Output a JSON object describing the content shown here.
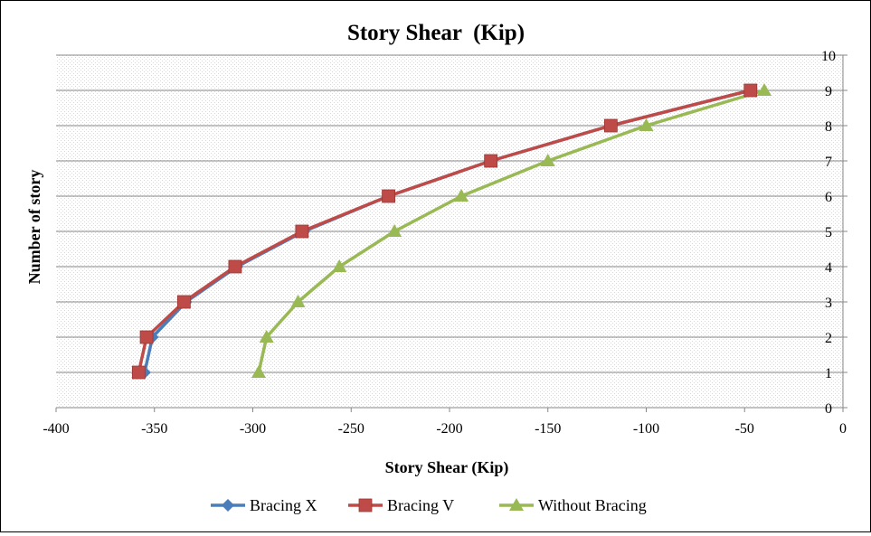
{
  "chart_data": {
    "type": "line",
    "title": "Story Shear  (Kip)",
    "xlabel": "Story Shear (Kip)",
    "ylabel": "Number of story",
    "xlim": [
      -400,
      0
    ],
    "ylim": [
      0,
      10
    ],
    "x_ticks": [
      -400,
      -350,
      -300,
      -250,
      -200,
      -150,
      -100,
      -50,
      0
    ],
    "y_ticks": [
      0,
      1,
      2,
      3,
      4,
      5,
      6,
      7,
      8,
      9,
      10
    ],
    "y_axis_position": "right",
    "grid": true,
    "legend_position": "bottom",
    "series": [
      {
        "name": "Bracing X",
        "color": "#4A7EBB",
        "marker": "diamond",
        "points": [
          [
            -355,
            1
          ],
          [
            -351,
            2
          ],
          [
            -334,
            3
          ],
          [
            -308,
            4
          ],
          [
            -274,
            5
          ],
          [
            -231,
            6
          ],
          [
            -179,
            7
          ],
          [
            -118,
            8
          ],
          [
            -47,
            9
          ]
        ]
      },
      {
        "name": "Bracing V",
        "color": "#BE4B48",
        "marker": "square",
        "points": [
          [
            -358,
            1
          ],
          [
            -354,
            2
          ],
          [
            -335,
            3
          ],
          [
            -309,
            4
          ],
          [
            -275,
            5
          ],
          [
            -231,
            6
          ],
          [
            -179,
            7
          ],
          [
            -118,
            8
          ],
          [
            -47,
            9
          ]
        ]
      },
      {
        "name": "Without Bracing",
        "color": "#98B954",
        "marker": "triangle",
        "points": [
          [
            -297,
            1
          ],
          [
            -293,
            2
          ],
          [
            -277,
            3
          ],
          [
            -256,
            4
          ],
          [
            -228,
            5
          ],
          [
            -194,
            6
          ],
          [
            -150,
            7
          ],
          [
            -100,
            8
          ],
          [
            -40,
            9
          ]
        ]
      }
    ]
  }
}
